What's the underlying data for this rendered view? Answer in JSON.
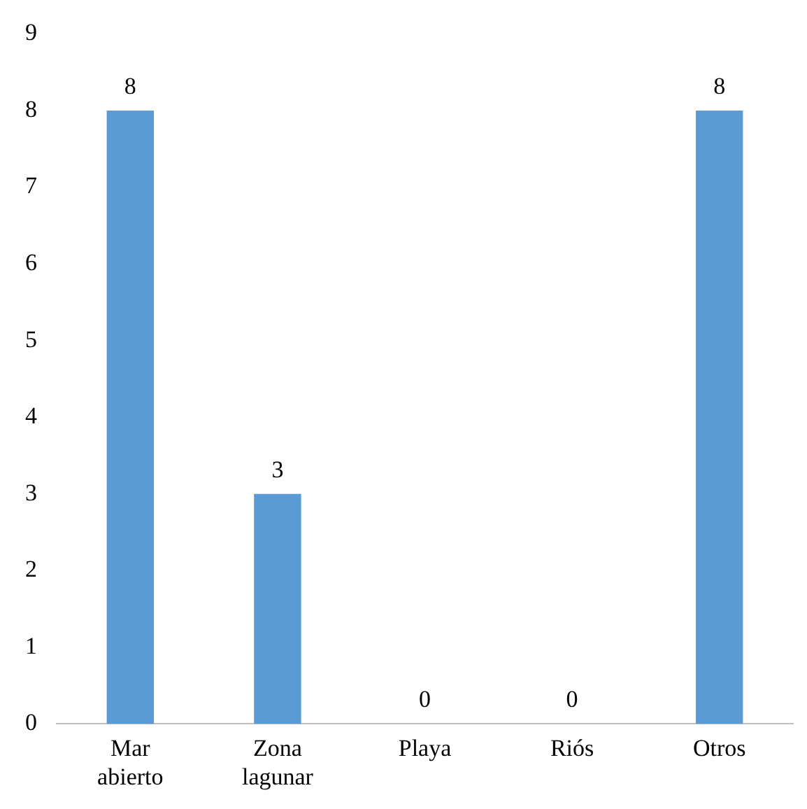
{
  "chart_data": {
    "type": "bar",
    "categories": [
      "Mar abierto",
      "Zona lagunar",
      "Playa",
      "Riós",
      "Otros"
    ],
    "values": [
      8,
      3,
      0,
      0,
      8
    ],
    "color": "#5b9bd5",
    "ylim": [
      0,
      9
    ],
    "yticks": [
      0,
      1,
      2,
      3,
      4,
      5,
      6,
      7,
      8,
      9
    ],
    "grid": false,
    "legend": false,
    "data_labels": true
  }
}
